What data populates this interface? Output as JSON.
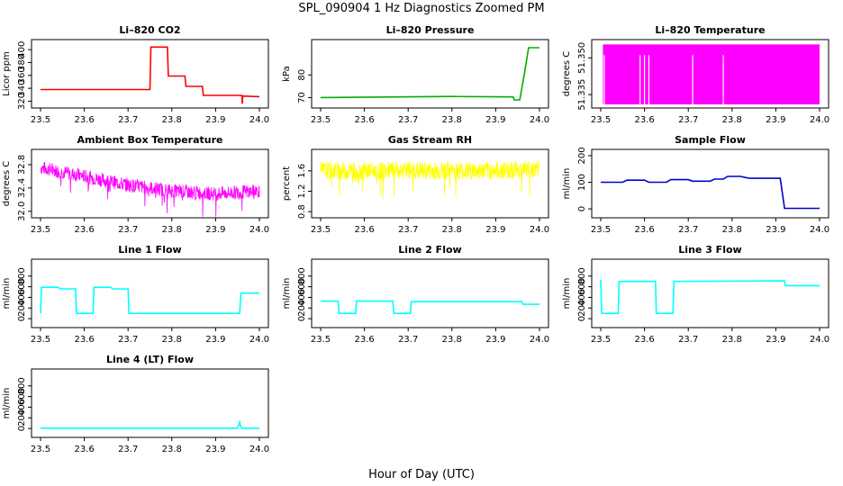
{
  "title": "SPL_090904  1 Hz Diagnostics Zoomed PM",
  "xlabel": "Hour of Day (UTC)",
  "chart_data": [
    {
      "type": "line",
      "title": "Li–820 CO2",
      "ylabel": "Licor ppm",
      "color": "#ff0000",
      "xlim": [
        23.5,
        24.0
      ],
      "ylim": [
        315,
        410
      ],
      "yticks": [
        320,
        340,
        360,
        380,
        400
      ],
      "x": [
        23.5,
        23.75,
        23.752,
        23.79,
        23.792,
        23.83,
        23.832,
        23.87,
        23.872,
        23.96,
        23.961,
        23.962,
        24.0
      ],
      "series": [
        {
          "values": [
            338,
            338,
            404,
            404,
            359,
            359,
            343,
            343,
            329,
            329,
            316,
            328,
            327
          ]
        }
      ]
    },
    {
      "type": "line",
      "title": "Li–820 Pressure",
      "ylabel": "kPa",
      "color": "#00b000",
      "xlim": [
        23.5,
        24.0
      ],
      "ylim": [
        67,
        94
      ],
      "yticks": [
        70,
        80
      ],
      "x": [
        23.5,
        23.8,
        23.94,
        23.942,
        23.955,
        23.965,
        23.975,
        24.0
      ],
      "series": [
        {
          "values": [
            70,
            70.5,
            70.3,
            69,
            69,
            80,
            92,
            92
          ]
        }
      ]
    },
    {
      "type": "area",
      "title": "Li–820 Temperature",
      "ylabel": "degrees C",
      "color": "#ff00ff",
      "xlim": [
        23.5,
        24.0
      ],
      "ylim": [
        51.331,
        51.356
      ],
      "yticks": [
        51.335,
        51.35
      ],
      "ytick_labels": [
        "51.335",
        "51.350"
      ],
      "x": [
        23.505,
        24.0
      ],
      "series": [
        {
          "values": [
            51.3555,
            51.3555
          ]
        }
      ],
      "gaps_x": [
        23.508,
        23.59,
        23.6,
        23.61,
        23.71,
        23.78
      ]
    },
    {
      "type": "line",
      "title": "Ambient Box Temperature",
      "ylabel": "degrees C",
      "color": "#ff00ff",
      "xlim": [
        23.5,
        24.0
      ],
      "ylim": [
        31.95,
        33.0
      ],
      "yticks": [
        32.0,
        32.4,
        32.8
      ],
      "ytick_labels": [
        "32.0",
        "32.4",
        "32.8"
      ],
      "x": [
        23.5,
        23.6,
        23.7,
        23.8,
        23.9,
        24.0
      ],
      "series": [
        {
          "values": [
            32.75,
            32.6,
            32.45,
            32.35,
            32.3,
            32.35
          ]
        }
      ]
    },
    {
      "type": "line",
      "title": "Gas Stream RH",
      "ylabel": "percent",
      "color": "#ffff00",
      "xlim": [
        23.5,
        24.0
      ],
      "ylim": [
        0.75,
        1.95
      ],
      "yticks": [
        0.8,
        1.2,
        1.6
      ],
      "ytick_labels": [
        "0.8",
        "1.2",
        "1.6"
      ],
      "x": [
        23.5,
        23.6,
        23.7,
        23.8,
        23.9,
        24.0
      ],
      "series": [
        {
          "values": [
            1.6,
            1.6,
            1.6,
            1.6,
            1.6,
            1.65
          ]
        }
      ]
    },
    {
      "type": "line",
      "title": "Sample Flow",
      "ylabel": "ml/min",
      "color": "#0000cc",
      "xlim": [
        23.5,
        24.0
      ],
      "ylim": [
        -20,
        210
      ],
      "yticks": [
        0,
        100,
        200
      ],
      "x": [
        23.5,
        23.55,
        23.56,
        23.6,
        23.61,
        23.65,
        23.66,
        23.7,
        23.71,
        23.75,
        23.76,
        23.78,
        23.79,
        23.82,
        23.83,
        23.84,
        23.91,
        23.92,
        24.0
      ],
      "series": [
        {
          "values": [
            100,
            100,
            108,
            108,
            100,
            100,
            110,
            110,
            104,
            104,
            112,
            112,
            122,
            122,
            118,
            115,
            115,
            2,
            2
          ]
        }
      ]
    },
    {
      "type": "line",
      "title": "Line 1 Flow",
      "ylabel": "ml/min",
      "color": "#00ffff",
      "xlim": [
        23.5,
        24.0
      ],
      "ylim": [
        -100,
        1050
      ],
      "yticks": [
        0,
        200,
        400,
        600,
        800
      ],
      "x": [
        23.5,
        23.502,
        23.54,
        23.545,
        23.58,
        23.582,
        23.62,
        23.622,
        23.66,
        23.665,
        23.7,
        23.702,
        23.955,
        23.958,
        24.0
      ],
      "series": [
        {
          "values": [
            100,
            590,
            590,
            560,
            560,
            100,
            100,
            590,
            590,
            560,
            560,
            100,
            100,
            480,
            480
          ]
        }
      ]
    },
    {
      "type": "line",
      "title": "Line 2 Flow",
      "ylabel": "ml/min",
      "color": "#00ffff",
      "xlim": [
        23.5,
        24.0
      ],
      "ylim": [
        -100,
        1050
      ],
      "yticks": [
        0,
        200,
        400,
        600,
        800
      ],
      "x": [
        23.5,
        23.54,
        23.542,
        23.58,
        23.582,
        23.665,
        23.667,
        23.705,
        23.707,
        23.96,
        23.962,
        24.0
      ],
      "series": [
        {
          "values": [
            330,
            330,
            100,
            100,
            330,
            330,
            100,
            100,
            320,
            320,
            270,
            270
          ]
        }
      ]
    },
    {
      "type": "line",
      "title": "Line 3 Flow",
      "ylabel": "ml/min",
      "color": "#00ffff",
      "xlim": [
        23.5,
        24.0
      ],
      "ylim": [
        -100,
        1050
      ],
      "yticks": [
        0,
        200,
        400,
        600,
        800
      ],
      "x": [
        23.5,
        23.502,
        23.505,
        23.54,
        23.542,
        23.625,
        23.627,
        23.665,
        23.667,
        23.92,
        23.922,
        24.0
      ],
      "series": [
        {
          "values": [
            730,
            100,
            100,
            100,
            700,
            700,
            100,
            100,
            700,
            710,
            620,
            620
          ]
        }
      ]
    },
    {
      "type": "line",
      "title": "Line 4 (LT) Flow",
      "ylabel": "ml/min",
      "color": "#00ffff",
      "xlim": [
        23.5,
        24.0
      ],
      "ylim": [
        -100,
        1050
      ],
      "yticks": [
        0,
        200,
        400,
        600,
        800
      ],
      "x": [
        23.5,
        23.95,
        23.955,
        23.958,
        23.96,
        24.0
      ],
      "series": [
        {
          "values": [
            5,
            5,
            120,
            20,
            5,
            5
          ]
        }
      ]
    }
  ],
  "xticks": [
    23.5,
    23.6,
    23.7,
    23.8,
    23.9,
    24.0
  ],
  "xtick_labels": [
    "23.5",
    "23.6",
    "23.7",
    "23.8",
    "23.9",
    "24.0"
  ]
}
